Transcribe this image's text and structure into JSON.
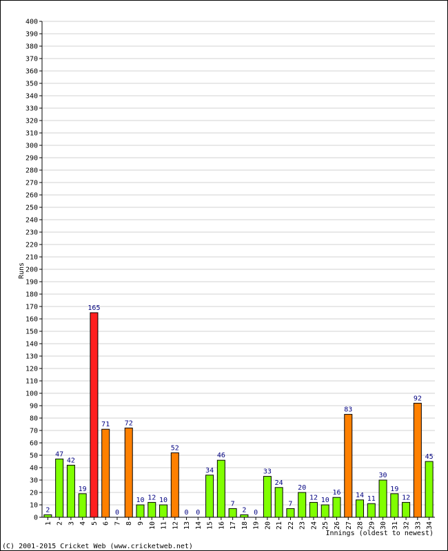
{
  "chart_data": {
    "type": "bar",
    "title": "",
    "xlabel": "Innings (oldest to newest)",
    "ylabel": "Runs",
    "ylim": [
      0,
      400
    ],
    "ytick_step": 10,
    "grid": true,
    "categories": [
      "1",
      "2",
      "3",
      "4",
      "5",
      "6",
      "7",
      "8",
      "9",
      "10",
      "11",
      "12",
      "13",
      "14",
      "15",
      "16",
      "17",
      "18",
      "19",
      "20",
      "21",
      "22",
      "23",
      "24",
      "25",
      "26",
      "27",
      "28",
      "29",
      "30",
      "31",
      "32",
      "33",
      "34"
    ],
    "values": [
      2,
      47,
      42,
      19,
      165,
      71,
      0,
      72,
      10,
      12,
      10,
      52,
      0,
      0,
      34,
      46,
      7,
      2,
      0,
      33,
      24,
      7,
      20,
      12,
      10,
      16,
      83,
      14,
      11,
      30,
      19,
      12,
      92,
      45
    ],
    "colors": {
      "under_50": "#80ff00",
      "fifty": "#ff8000",
      "hundred": "#ff2020",
      "label": "#000080",
      "grid": "#d0d0d0",
      "bar_border": "#000000"
    }
  },
  "footer": {
    "copyright": "(C) 2001-2015 Cricket Web (www.cricketweb.net)"
  }
}
